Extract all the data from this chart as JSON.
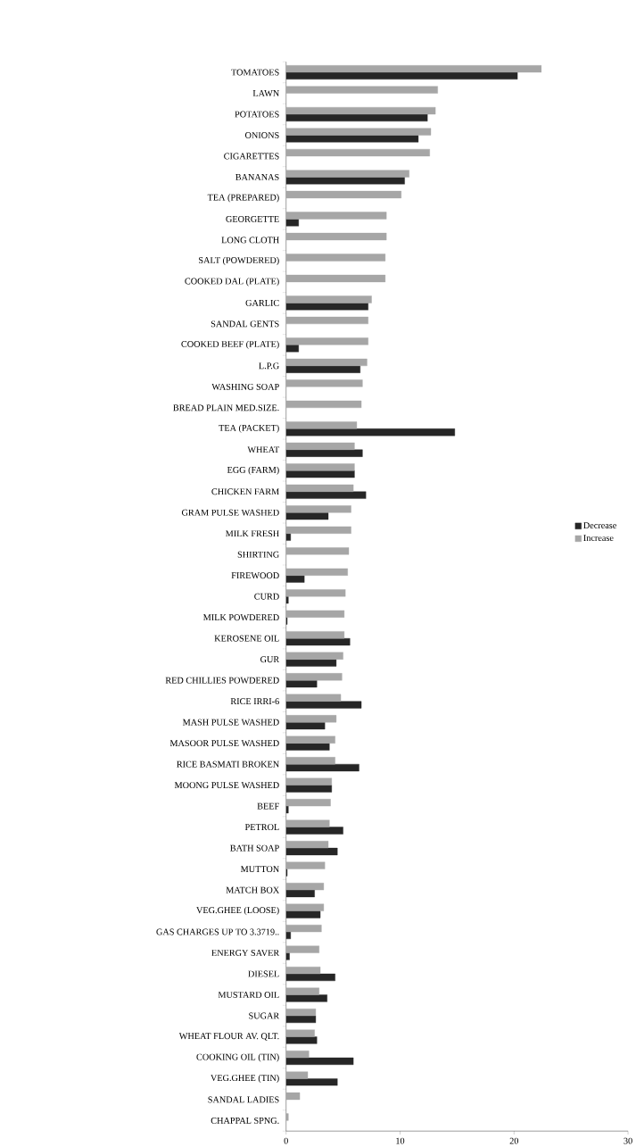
{
  "chart_data": {
    "type": "bar",
    "orientation": "horizontal",
    "categories": [
      "TOMATOES",
      "LAWN",
      "POTATOES",
      "ONIONS",
      "CIGARETTES",
      "BANANAS",
      "TEA (PREPARED)",
      "GEORGETTE",
      "LONG CLOTH",
      "SALT (POWDERED)",
      "COOKED DAL (PLATE)",
      "GARLIC",
      "SANDAL GENTS",
      "COOKED BEEF (PLATE)",
      "L.P.G",
      "WASHING SOAP",
      "BREAD PLAIN MED.SIZE.",
      "TEA (PACKET)",
      "WHEAT",
      "EGG (FARM)",
      "CHICKEN FARM",
      "GRAM PULSE WASHED",
      "MILK FRESH",
      "SHIRTING",
      "FIREWOOD",
      "CURD",
      "MILK POWDERED",
      "KEROSENE OIL",
      "GUR",
      "RED CHILLIES POWDERED",
      "RICE IRRI-6",
      "MASH PULSE WASHED",
      "MASOOR PULSE WASHED",
      "RICE BASMATI BROKEN",
      "MOONG PULSE WASHED",
      "BEEF",
      "PETROL",
      "BATH SOAP",
      "MUTTON",
      "MATCH BOX",
      "VEG.GHEE (LOOSE)",
      "GAS CHARGES UP TO 3.3719..",
      "ENERGY SAVER",
      "DIESEL",
      "MUSTARD OIL",
      "SUGAR",
      "WHEAT FLOUR AV. QLT.",
      "COOKING OIL (TIN)",
      "VEG.GHEE (TIN)",
      "SANDAL LADIES",
      "CHAPPAL SPNG."
    ],
    "series": [
      {
        "name": "Decrease",
        "color": "#262626",
        "values": [
          20.3,
          null,
          12.4,
          11.6,
          null,
          10.4,
          null,
          1.1,
          null,
          null,
          null,
          7.2,
          null,
          1.1,
          6.5,
          null,
          null,
          14.8,
          6.7,
          6.0,
          7.0,
          3.7,
          0.4,
          null,
          1.6,
          0.2,
          0.1,
          5.6,
          4.4,
          2.7,
          6.6,
          3.4,
          3.8,
          6.4,
          4.0,
          0.2,
          5.0,
          4.5,
          0.1,
          2.5,
          3.0,
          0.4,
          0.3,
          4.3,
          3.6,
          2.6,
          2.7,
          5.9,
          4.5,
          null,
          null
        ]
      },
      {
        "name": "Increase",
        "color": "#a6a6a6",
        "values": [
          22.4,
          13.3,
          13.1,
          12.7,
          12.6,
          10.8,
          10.1,
          8.8,
          8.8,
          8.7,
          8.7,
          7.5,
          7.2,
          7.2,
          7.1,
          6.7,
          6.6,
          6.2,
          6.0,
          6.0,
          5.9,
          5.7,
          5.7,
          5.5,
          5.4,
          5.2,
          5.1,
          5.1,
          5.0,
          4.9,
          4.8,
          4.4,
          4.3,
          4.3,
          4.0,
          3.9,
          3.8,
          3.7,
          3.4,
          3.3,
          3.3,
          3.1,
          2.9,
          3.0,
          2.9,
          2.6,
          2.5,
          2.0,
          1.9,
          1.2,
          0.2
        ]
      }
    ],
    "xlim": [
      0,
      30
    ],
    "xticks": [
      0,
      10,
      20,
      30
    ],
    "legend": "right"
  }
}
